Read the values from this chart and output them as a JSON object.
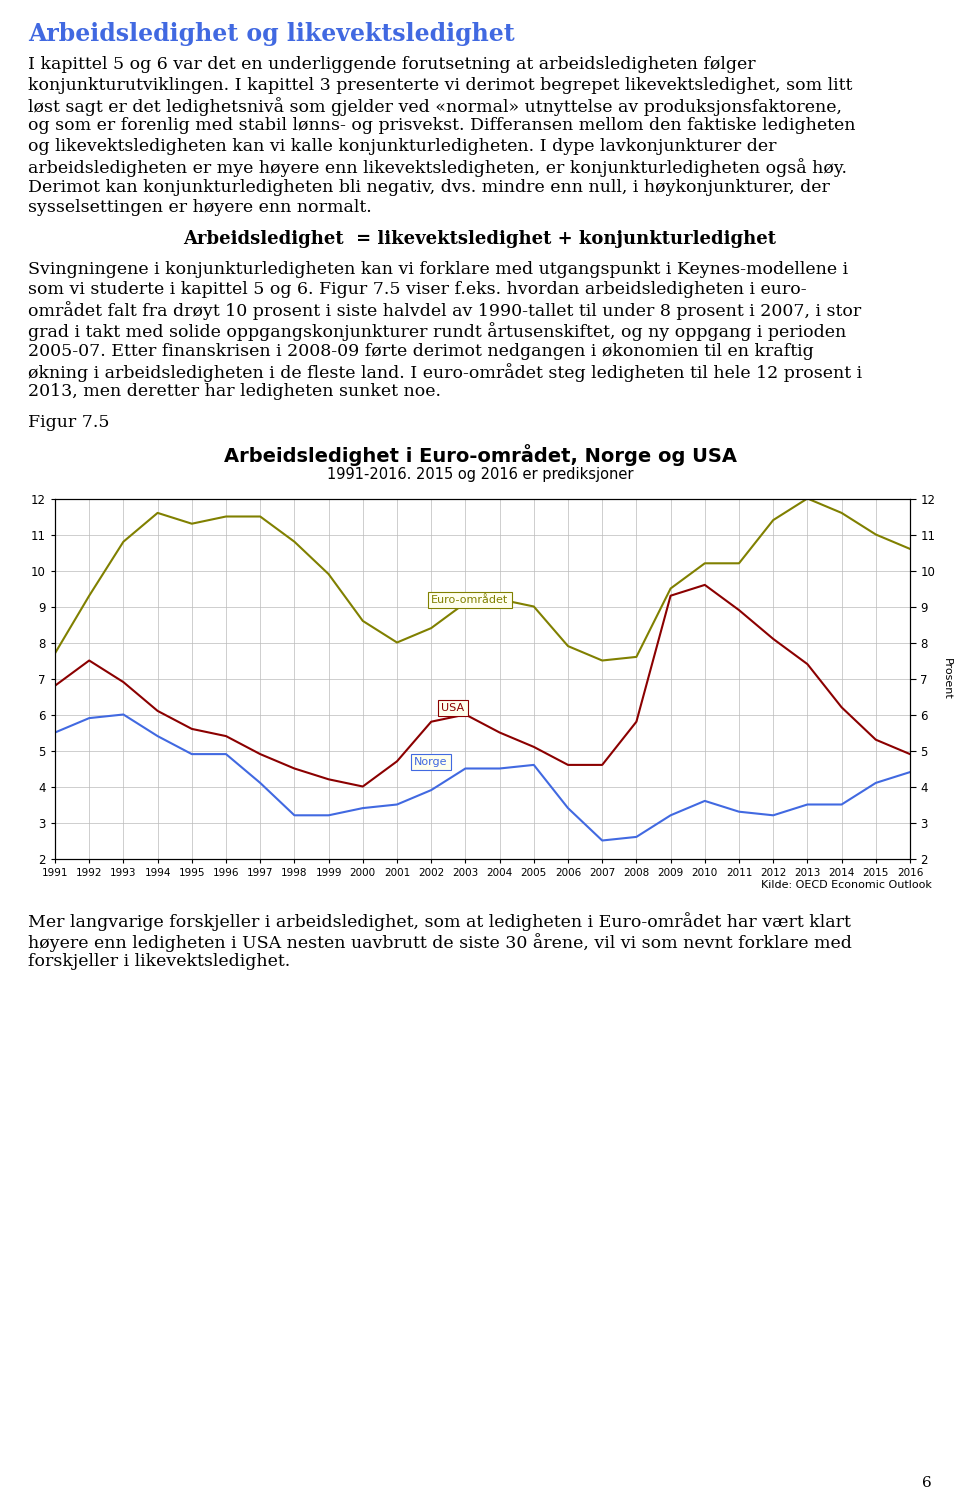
{
  "title": "Arbeidsledighet i Euro-området, Norge og USA",
  "subtitle": "1991-2016. 2015 og 2016 er prediksjoner",
  "source": "Kilde: OECD Economic Outlook",
  "ylabel": "Prosent",
  "ylim": [
    2,
    12
  ],
  "yticks": [
    2,
    3,
    4,
    5,
    6,
    7,
    8,
    9,
    10,
    11,
    12
  ],
  "years": [
    1991,
    1992,
    1993,
    1994,
    1995,
    1996,
    1997,
    1998,
    1999,
    2000,
    2001,
    2002,
    2003,
    2004,
    2005,
    2006,
    2007,
    2008,
    2009,
    2010,
    2011,
    2012,
    2013,
    2014,
    2015,
    2016
  ],
  "euro": [
    7.7,
    9.3,
    10.8,
    11.6,
    11.3,
    11.5,
    11.5,
    10.8,
    9.9,
    8.6,
    8.0,
    8.4,
    9.1,
    9.2,
    9.0,
    7.9,
    7.5,
    7.6,
    9.5,
    10.2,
    10.2,
    11.4,
    12.0,
    11.6,
    11.0,
    10.6
  ],
  "usa": [
    6.8,
    7.5,
    6.9,
    6.1,
    5.6,
    5.4,
    4.9,
    4.5,
    4.2,
    4.0,
    4.7,
    5.8,
    6.0,
    5.5,
    5.1,
    4.6,
    4.6,
    5.8,
    9.3,
    9.6,
    8.9,
    8.1,
    7.4,
    6.2,
    5.3,
    4.9
  ],
  "norge": [
    5.5,
    5.9,
    6.0,
    5.4,
    4.9,
    4.9,
    4.1,
    3.2,
    3.2,
    3.4,
    3.5,
    3.9,
    4.5,
    4.5,
    4.6,
    3.4,
    2.5,
    2.6,
    3.2,
    3.6,
    3.3,
    3.2,
    3.5,
    3.5,
    4.1,
    4.4
  ],
  "euro_color": "#808000",
  "usa_color": "#8B0000",
  "norge_color": "#4169E1",
  "page_title": "Arbeidsledighet og likevektsledighet",
  "page_title_color": "#4169E1",
  "body_text_1": [
    "I kapittel 5 og 6 var det en underliggende forutsetning at arbeidsledigheten følger",
    "konjunkturutviklingen. I kapittel 3 presenterte vi derimot begrepet likevektsledighet, som litt",
    "løst sagt er det ledighetsnivå som gjelder ved «normal» utnyttelse av produksjonsfaktorene,",
    "og som er forenlig med stabil lønns- og prisvekst. Differansen mellom den faktiske ledigheten",
    "og likevektsledigheten kan vi kalle konjunkturledigheten. I dype lavkonjunkturer der",
    "arbeidsledigheten er mye høyere enn likevektsledigheten, er konjunkturledigheten også høy.",
    "Derimot kan konjunkturledigheten bli negativ, dvs. mindre enn null, i høykonjunkturer, der",
    "sysselsettingen er høyere enn normalt."
  ],
  "formula_text": "Arbeidsledighet  = likevektsledighet + konjunkturledighet",
  "body_text_2": [
    "Svingningene i konjunkturledigheten kan vi forklare med utgangspunkt i Keynes-modellene i",
    "som vi studerte i kapittel 5 og 6. Figur 7.5 viser f.eks. hvordan arbeidsledigheten i euro-",
    "området falt fra drøyt 10 prosent i siste halvdel av 1990-tallet til under 8 prosent i 2007, i stor",
    "grad i takt med solide oppgangskonjunkturer rundt årtusenskiftet, og ny oppgang i perioden",
    "2005-07. Etter finanskrisen i 2008-09 førte derimot nedgangen i økonomien til en kraftig",
    "økning i arbeidsledigheten i de fleste land. I euro-området steg ledigheten til hele 12 prosent i",
    "2013, men deretter har ledigheten sunket noe."
  ],
  "figur_label": "Figur 7.5",
  "body_text_3": [
    "Mer langvarige forskjeller i arbeidsledighet, som at ledigheten i Euro-området har vært klart",
    "høyere enn ledigheten i USA nesten uavbrutt de siste 30 årene, vil vi som nevnt forklare med",
    "forskjeller i likevektsledighet."
  ],
  "page_number": "6"
}
